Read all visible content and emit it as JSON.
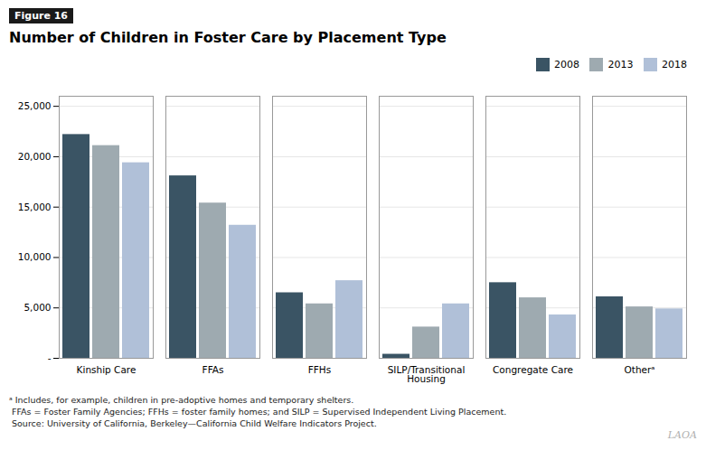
{
  "chart_data": {
    "type": "bar",
    "title": "Number of Children in Foster Care by Placement Type",
    "annotations": [
      "Figure 16",
      "ᵃ Includes, for example, children in pre-adoptive homes and temporary shelters.",
      " FFAs = Foster Family Agencies; FFHs = foster family homes; and SILP = Supervised Independent Living Placement.",
      " Source: University of California, Berkeley—California Child Welfare Indicators Project.",
      "LAOA"
    ],
    "categories": [
      "Kinship Care",
      "FFAs",
      "FFHs",
      "SILP/Transitional\nHousing",
      "Congregate Care",
      "Otherᵃ"
    ],
    "series": [
      {
        "name": "2008",
        "color": "#3a5464",
        "values": [
          22200,
          18100,
          6500,
          400,
          7500,
          6100
        ]
      },
      {
        "name": "2013",
        "color": "#9eaab0",
        "values": [
          21100,
          15400,
          5400,
          3100,
          6000,
          5100
        ]
      },
      {
        "name": "2018",
        "color": "#b0c0d8",
        "values": [
          19400,
          13200,
          7700,
          5400,
          4300,
          4900
        ]
      }
    ],
    "ylim": [
      0,
      26000
    ],
    "yticks": [
      {
        "value": 0,
        "label": "-"
      },
      {
        "value": 5000,
        "label": "5,000"
      },
      {
        "value": 10000,
        "label": "10,000"
      },
      {
        "value": 15000,
        "label": "15,000"
      },
      {
        "value": 20000,
        "label": "20,000"
      },
      {
        "value": 25000,
        "label": "25,000"
      }
    ],
    "grid": true,
    "legend": "upper right"
  }
}
